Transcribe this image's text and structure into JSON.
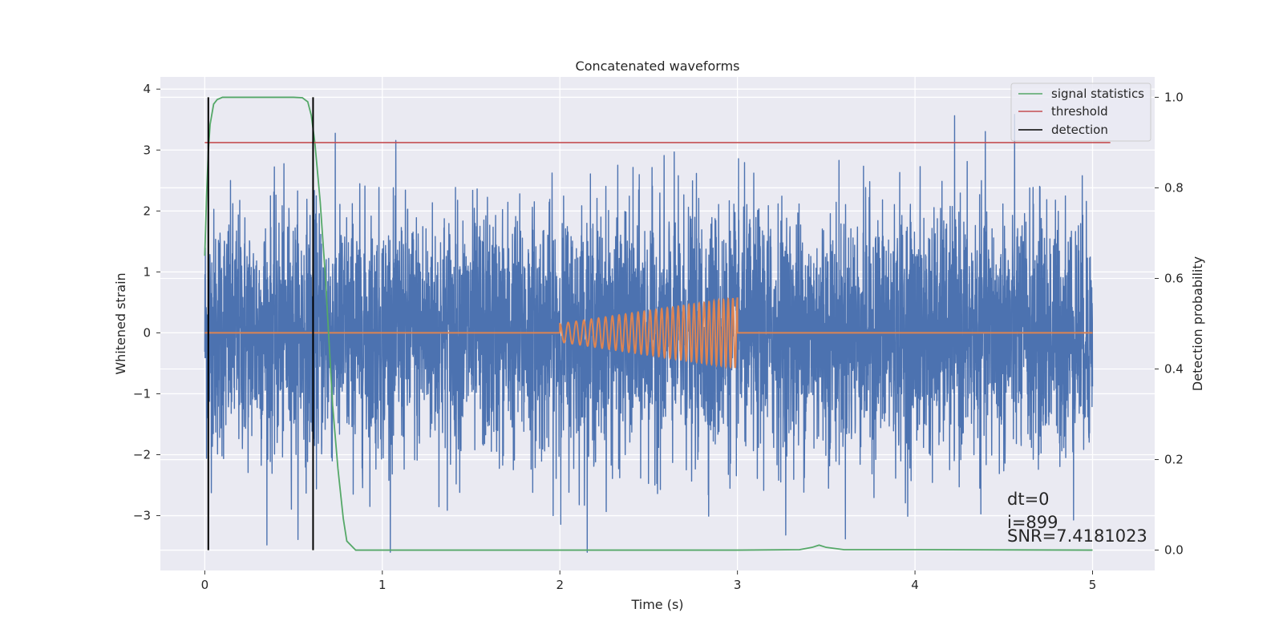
{
  "chart_data": {
    "type": "line",
    "title": "Concatenated waveforms",
    "xlabel": "Time (s)",
    "ylabel": "Whitened strain",
    "y2label": "Detection probability",
    "xlim": [
      -0.25,
      5.35
    ],
    "ylim": [
      -3.9,
      4.2
    ],
    "y2lim": [
      -0.045,
      1.045
    ],
    "x_ticks": [
      0,
      1,
      2,
      3,
      4,
      5
    ],
    "y_ticks": [
      -3,
      -2,
      -1,
      0,
      1,
      2,
      3,
      4
    ],
    "y2_ticks": [
      0.0,
      0.2,
      0.4,
      0.6,
      0.8,
      1.0
    ],
    "y2_tick_labels": [
      "0.0",
      "0.2",
      "0.4",
      "0.6",
      "0.8",
      "1.0"
    ],
    "grid": true,
    "legend_position": "top-right",
    "legend": [
      "signal statistics",
      "threshold",
      "detection"
    ],
    "colors": {
      "strain": "#4c72b0",
      "template": "#dd8452",
      "signal_statistics": "#55a868",
      "threshold": "#c44e52",
      "detection": "#000000",
      "plot_background": "#eaeaf2",
      "grid": "#ffffff"
    },
    "series": [
      {
        "name": "",
        "axis": "left",
        "kind": "noise",
        "x_range": [
          0,
          5
        ],
        "typical_amplitude": 1.0,
        "max": 3.85,
        "min": -3.6
      },
      {
        "name": "",
        "axis": "left",
        "kind": "chirp",
        "flat_value": 0,
        "x_range": [
          0,
          5
        ],
        "chirp_start": 2.0,
        "chirp_end": 3.0,
        "amplitude_start": 0.15,
        "amplitude_end": 0.58,
        "cycles": 30
      },
      {
        "name": "signal statistics",
        "axis": "right",
        "x": [
          0.0,
          0.01,
          0.02,
          0.03,
          0.05,
          0.07,
          0.1,
          0.15,
          0.3,
          0.5,
          0.55,
          0.58,
          0.6,
          0.62,
          0.65,
          0.68,
          0.7,
          0.72,
          0.75,
          0.78,
          0.8,
          0.85,
          1.0,
          2.0,
          3.0,
          3.35,
          3.42,
          3.46,
          3.5,
          3.6,
          4.0,
          5.0
        ],
        "y": [
          0.65,
          0.78,
          0.88,
          0.94,
          0.985,
          0.995,
          1.0,
          1.0,
          1.0,
          1.0,
          0.999,
          0.99,
          0.96,
          0.9,
          0.77,
          0.6,
          0.46,
          0.32,
          0.18,
          0.07,
          0.02,
          0.0,
          0.0,
          0.0,
          0.0,
          0.001,
          0.006,
          0.011,
          0.006,
          0.001,
          0.001,
          0.0
        ]
      },
      {
        "name": "threshold",
        "axis": "right",
        "x": [
          0.0,
          5.1
        ],
        "y": [
          0.9,
          0.9
        ]
      },
      {
        "name": "detection",
        "axis": "right",
        "x": [
          0.02,
          0.61
        ],
        "y_range": [
          0.0,
          1.0
        ]
      }
    ],
    "annotations": [
      "dt=0",
      "i=899",
      "SNR=7.4181023"
    ]
  }
}
